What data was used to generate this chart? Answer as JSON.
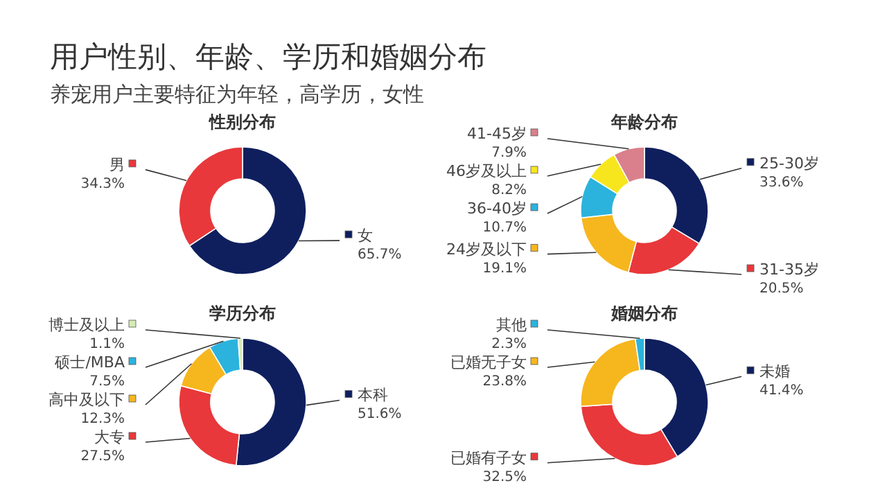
{
  "chart_data": [
    {
      "type": "other",
      "title": "用户性别、年龄、学历和婚姻分布",
      "subtitle": "养宠用户主要特征为年轻，高学历，女性"
    },
    {
      "type": "donut",
      "title": "性别分布",
      "categories": [
        "女",
        "男"
      ],
      "values": [
        65.7,
        34.3
      ],
      "colors": [
        "#0f1f5e",
        "#e8383b"
      ],
      "value_labels": [
        "65.7%",
        "34.3%"
      ],
      "legend": "right"
    },
    {
      "type": "donut",
      "title": "年龄分布",
      "categories": [
        "25-30岁",
        "31-35岁",
        "24岁及以下",
        "36-40岁",
        "46岁及以上",
        "41-45岁"
      ],
      "values": [
        33.6,
        20.5,
        19.1,
        10.7,
        8.2,
        7.9
      ],
      "colors": [
        "#0f1f5e",
        "#e8383b",
        "#f6b61e",
        "#2bb3dd",
        "#f7e61e",
        "#d9808c"
      ],
      "value_labels": [
        "33.6%",
        "20.5%",
        "19.1%",
        "10.7%",
        "8.2%",
        "7.9%"
      ],
      "legend": "left"
    },
    {
      "type": "donut",
      "title": "学历分布",
      "categories": [
        "本科",
        "大专",
        "高中及以下",
        "硕士/MBA",
        "博士及以上"
      ],
      "values": [
        51.6,
        27.5,
        12.3,
        7.5,
        1.1
      ],
      "colors": [
        "#0f1f5e",
        "#e8383b",
        "#f6b61e",
        "#2bb3dd",
        "#d6ecb2"
      ],
      "value_labels": [
        "51.6%",
        "27.5%",
        "12.3%",
        "7.5%",
        "1.1%"
      ],
      "legend": "left"
    },
    {
      "type": "donut",
      "title": "婚姻分布",
      "categories": [
        "未婚",
        "已婚有子女",
        "已婚无子女",
        "其他"
      ],
      "values": [
        41.4,
        32.5,
        23.8,
        2.3
      ],
      "colors": [
        "#0f1f5e",
        "#e8383b",
        "#f6b61e",
        "#2bb3dd"
      ],
      "value_labels": [
        "41.4%",
        "32.5%",
        "23.8%",
        "2.3%"
      ],
      "legend": "left"
    }
  ]
}
